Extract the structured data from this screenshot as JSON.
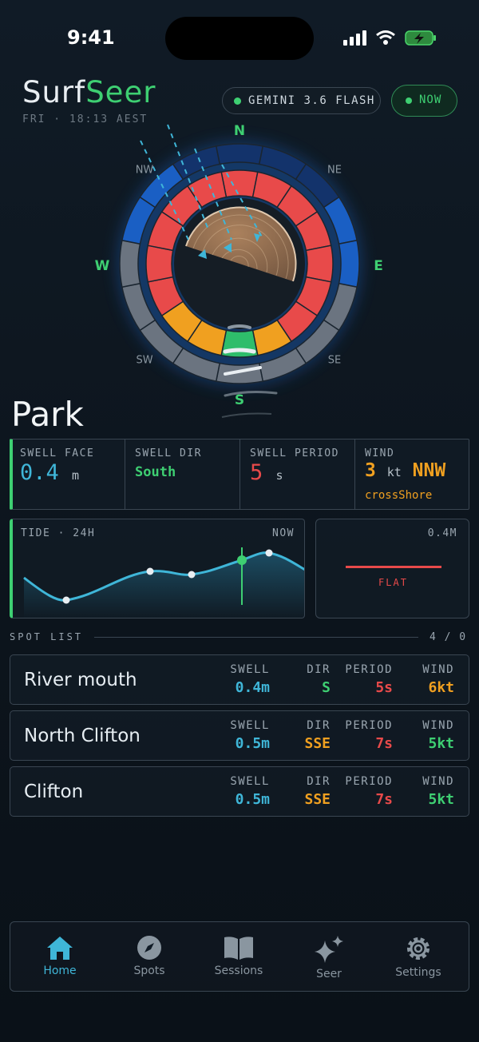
{
  "status": {
    "time": "9:41"
  },
  "header": {
    "brand_a": "Surf",
    "brand_b": "Seer",
    "subtitle": "FRI · 18:13 AEST",
    "model": "GEMINI 3.6 FLASH",
    "mode": "NOW"
  },
  "compass": {
    "labels": [
      "N",
      "NE",
      "E",
      "SE",
      "S",
      "SW",
      "W",
      "NW"
    ]
  },
  "spot": {
    "name": "Park",
    "stats": [
      {
        "label": "SWELL FACE",
        "value": "0.4",
        "unit": "m"
      },
      {
        "label": "SWELL DIR",
        "value": "South"
      },
      {
        "label": "SWELL PERIOD",
        "value": "5",
        "unit": "s"
      },
      {
        "label": "WIND",
        "value": "3",
        "unit": "kt",
        "dir": "NNW",
        "note": "crossShore"
      }
    ]
  },
  "tide": {
    "title": "TIDE · 24H",
    "now": "NOW"
  },
  "wave": {
    "height": "0.4M",
    "state": "FLAT"
  },
  "spot_list": {
    "title": "SPOT LIST",
    "count": "4 / 0",
    "columns": [
      "SWELL",
      "DIR",
      "PERIOD",
      "WIND"
    ],
    "rows": [
      {
        "name": "River mouth",
        "swell": "0.4m",
        "dir": "S",
        "period": "5s",
        "wind": "6kt"
      },
      {
        "name": "North Clifton",
        "swell": "0.5m",
        "dir": "SSE",
        "period": "7s",
        "wind": "5kt"
      },
      {
        "name": "Clifton",
        "swell": "0.5m",
        "dir": "SSE",
        "period": "7s",
        "wind": "5kt"
      }
    ]
  },
  "nav": [
    "Home",
    "Spots",
    "Sessions",
    "Seer",
    "Settings"
  ]
}
